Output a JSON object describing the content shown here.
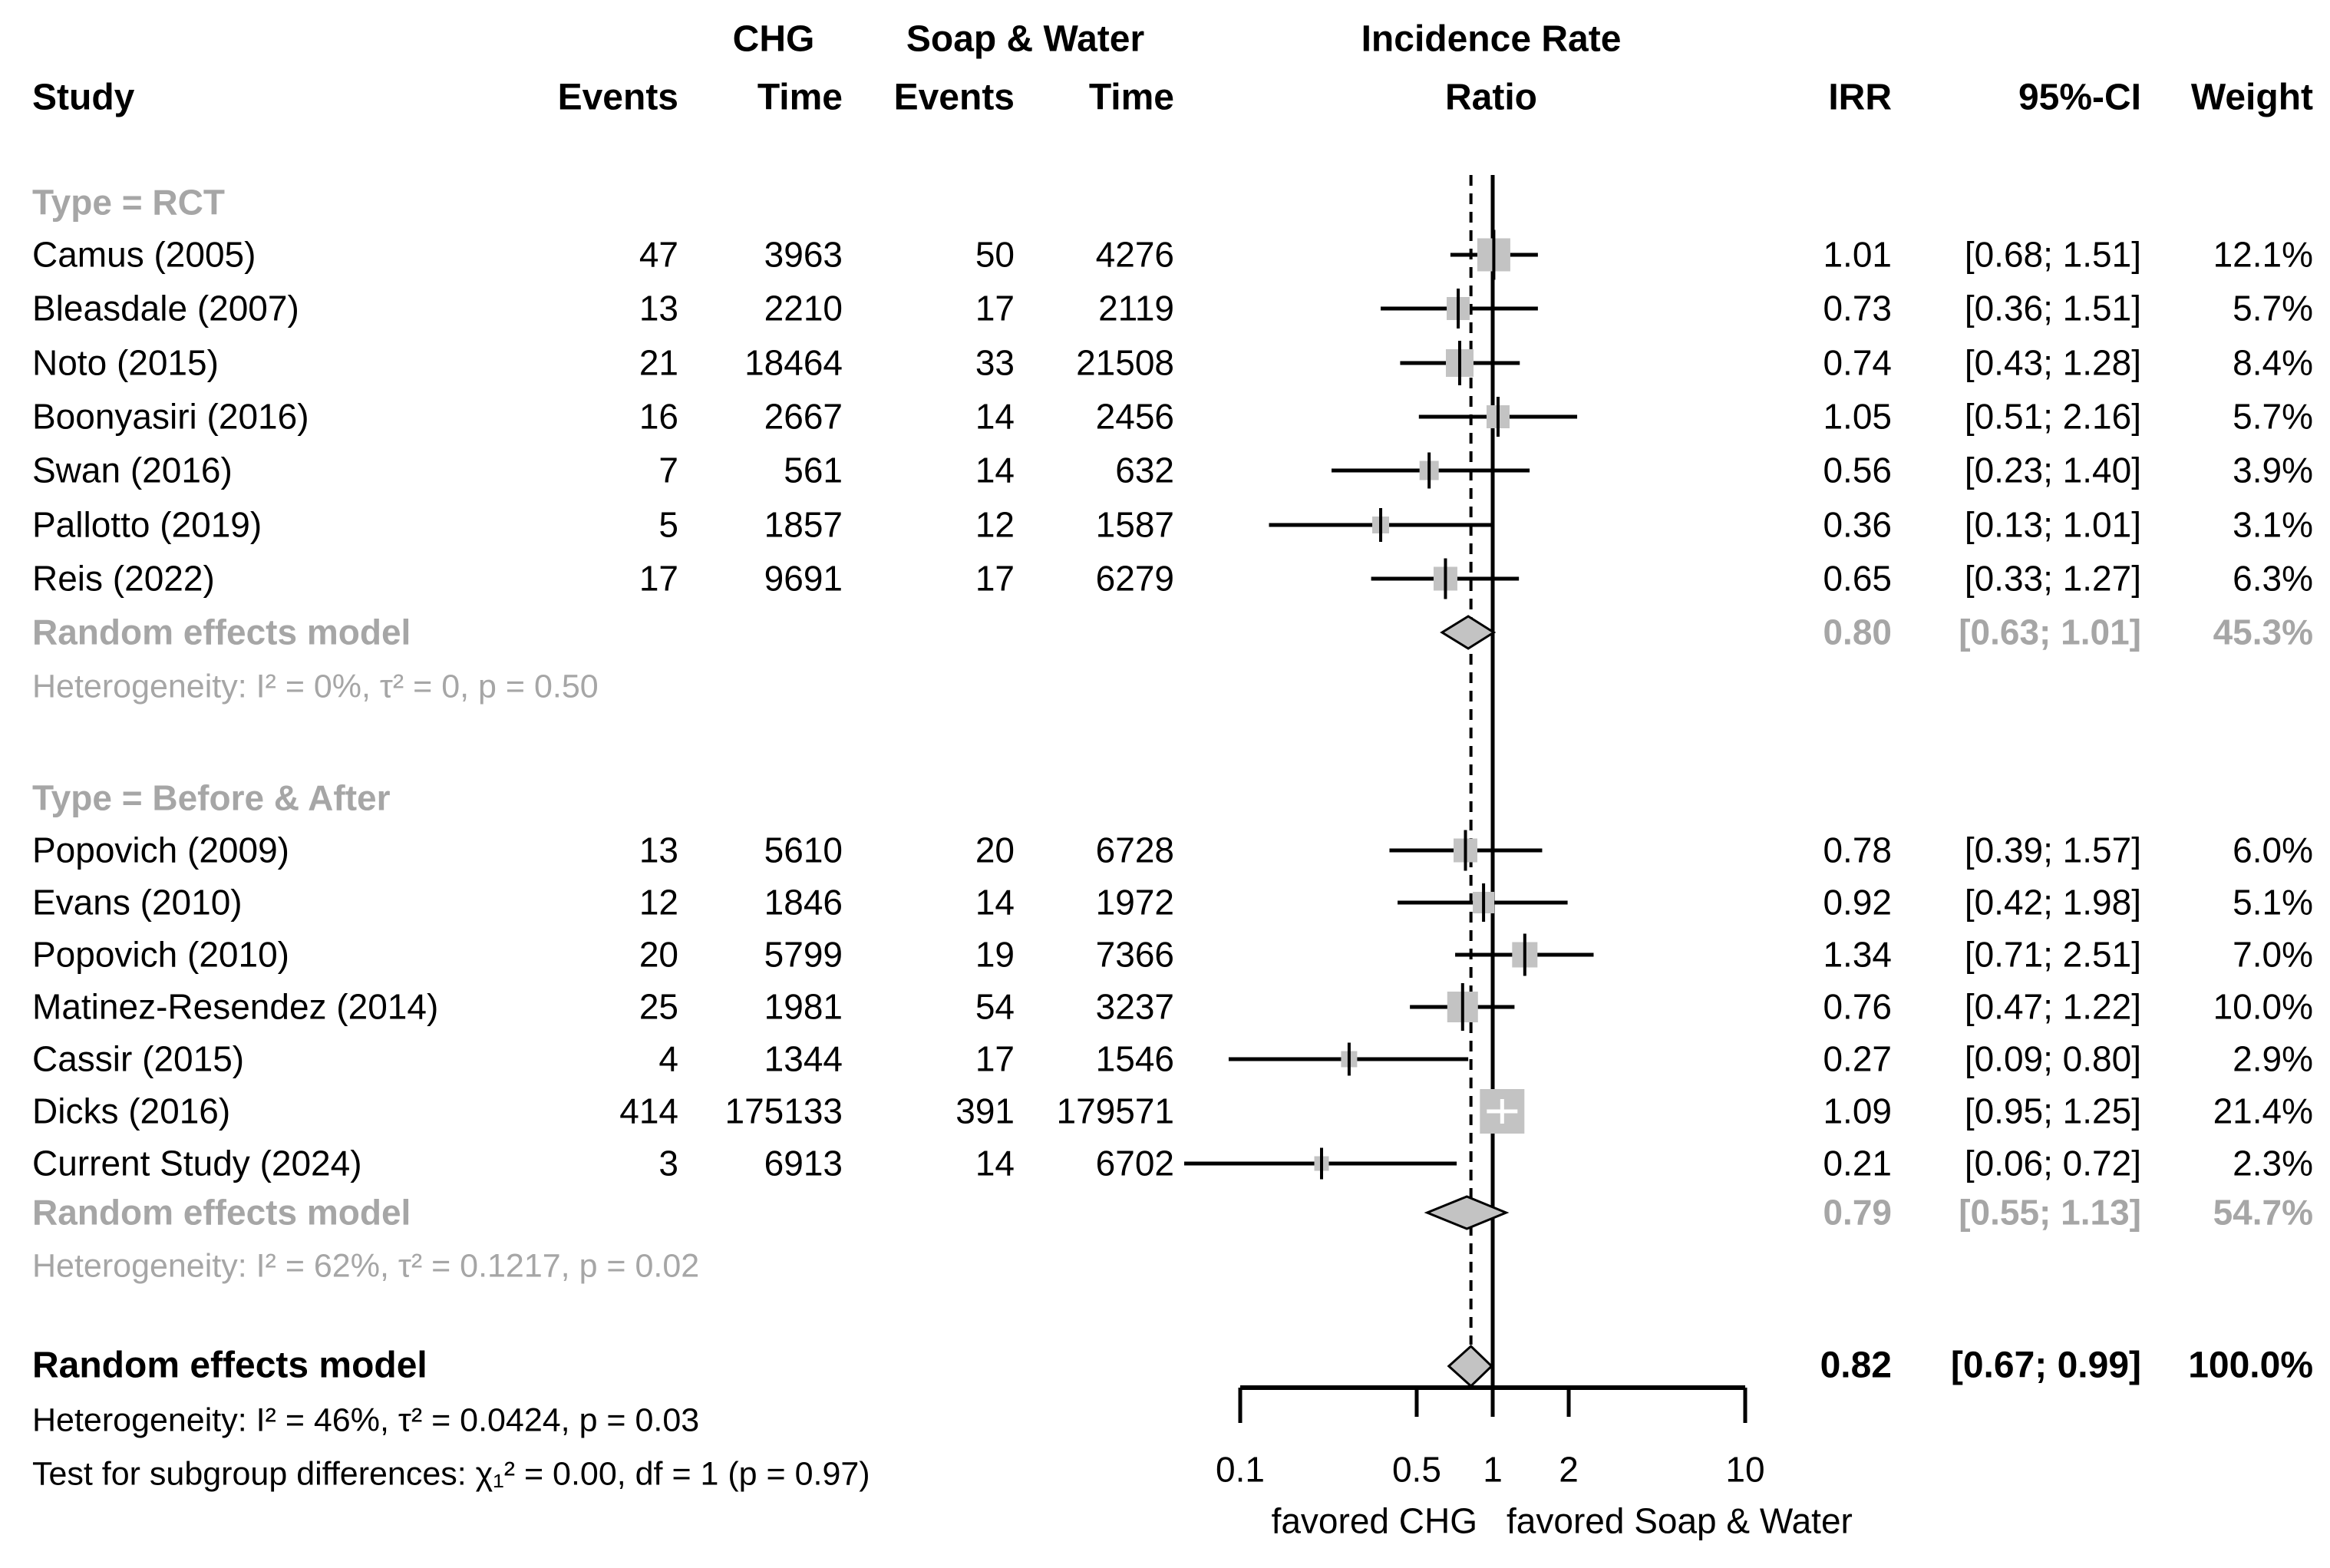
{
  "chart_data": {
    "type": "scatter",
    "subtype": "forest_plot_meta_analysis",
    "effect_measure": "IRR",
    "columns": {
      "study": "Study",
      "chg_group": "CHG",
      "soap_group": "Soap & Water",
      "events": "Events",
      "time": "Time",
      "plot_title_line1": "Incidence Rate",
      "plot_title_line2": "Ratio",
      "irr": "IRR",
      "ci": "95%-CI",
      "weight": "Weight"
    },
    "groups": [
      {
        "label": "Type = RCT",
        "studies": [
          {
            "name": "Camus (2005)",
            "events_chg": 47,
            "time_chg": 3963,
            "events_sw": 50,
            "time_sw": 4276,
            "irr": 1.01,
            "ci_lo": 0.68,
            "ci_hi": 1.51,
            "weight_pct": 12.1
          },
          {
            "name": "Bleasdale (2007)",
            "events_chg": 13,
            "time_chg": 2210,
            "events_sw": 17,
            "time_sw": 2119,
            "irr": 0.73,
            "ci_lo": 0.36,
            "ci_hi": 1.51,
            "weight_pct": 5.7
          },
          {
            "name": "Noto (2015)",
            "events_chg": 21,
            "time_chg": 18464,
            "events_sw": 33,
            "time_sw": 21508,
            "irr": 0.74,
            "ci_lo": 0.43,
            "ci_hi": 1.28,
            "weight_pct": 8.4
          },
          {
            "name": "Boonyasiri (2016)",
            "events_chg": 16,
            "time_chg": 2667,
            "events_sw": 14,
            "time_sw": 2456,
            "irr": 1.05,
            "ci_lo": 0.51,
            "ci_hi": 2.16,
            "weight_pct": 5.7
          },
          {
            "name": "Swan (2016)",
            "events_chg": 7,
            "time_chg": 561,
            "events_sw": 14,
            "time_sw": 632,
            "irr": 0.56,
            "ci_lo": 0.23,
            "ci_hi": 1.4,
            "weight_pct": 3.9
          },
          {
            "name": "Pallotto (2019)",
            "events_chg": 5,
            "time_chg": 1857,
            "events_sw": 12,
            "time_sw": 1587,
            "irr": 0.36,
            "ci_lo": 0.13,
            "ci_hi": 1.01,
            "weight_pct": 3.1
          },
          {
            "name": "Reis (2022)",
            "events_chg": 17,
            "time_chg": 9691,
            "events_sw": 17,
            "time_sw": 6279,
            "irr": 0.65,
            "ci_lo": 0.33,
            "ci_hi": 1.27,
            "weight_pct": 6.3
          }
        ],
        "summary": {
          "label": "Random effects model",
          "irr": 0.8,
          "ci_lo": 0.63,
          "ci_hi": 1.01,
          "weight_pct": 45.3
        },
        "heterogeneity": "Heterogeneity: I² = 0%, τ² = 0, p = 0.50"
      },
      {
        "label": "Type = Before & After",
        "studies": [
          {
            "name": "Popovich (2009)",
            "events_chg": 13,
            "time_chg": 5610,
            "events_sw": 20,
            "time_sw": 6728,
            "irr": 0.78,
            "ci_lo": 0.39,
            "ci_hi": 1.57,
            "weight_pct": 6.0
          },
          {
            "name": "Evans (2010)",
            "events_chg": 12,
            "time_chg": 1846,
            "events_sw": 14,
            "time_sw": 1972,
            "irr": 0.92,
            "ci_lo": 0.42,
            "ci_hi": 1.98,
            "weight_pct": 5.1
          },
          {
            "name": "Popovich (2010)",
            "events_chg": 20,
            "time_chg": 5799,
            "events_sw": 19,
            "time_sw": 7366,
            "irr": 1.34,
            "ci_lo": 0.71,
            "ci_hi": 2.51,
            "weight_pct": 7.0
          },
          {
            "name": "Matinez-Resendez (2014)",
            "events_chg": 25,
            "time_chg": 1981,
            "events_sw": 54,
            "time_sw": 3237,
            "irr": 0.76,
            "ci_lo": 0.47,
            "ci_hi": 1.22,
            "weight_pct": 10.0
          },
          {
            "name": "Cassir (2015)",
            "events_chg": 4,
            "time_chg": 1344,
            "events_sw": 17,
            "time_sw": 1546,
            "irr": 0.27,
            "ci_lo": 0.09,
            "ci_hi": 0.8,
            "weight_pct": 2.9
          },
          {
            "name": "Dicks (2016)",
            "events_chg": 414,
            "time_chg": 175133,
            "events_sw": 391,
            "time_sw": 179571,
            "irr": 1.09,
            "ci_lo": 0.95,
            "ci_hi": 1.25,
            "weight_pct": 21.4
          },
          {
            "name": "Current Study (2024)",
            "events_chg": 3,
            "time_chg": 6913,
            "events_sw": 14,
            "time_sw": 6702,
            "irr": 0.21,
            "ci_lo": 0.06,
            "ci_hi": 0.72,
            "weight_pct": 2.3
          }
        ],
        "summary": {
          "label": "Random effects model",
          "irr": 0.79,
          "ci_lo": 0.55,
          "ci_hi": 1.13,
          "weight_pct": 54.7
        },
        "heterogeneity": "Heterogeneity: I² = 62%, τ² = 0.1217, p = 0.02"
      }
    ],
    "overall": {
      "label": "Random effects model",
      "irr": 0.82,
      "ci_lo": 0.67,
      "ci_hi": 0.99,
      "weight_pct": 100.0,
      "heterogeneity": "Heterogeneity: I² = 46%, τ² = 0.0424, p = 0.03",
      "subgroup_test": "Test for subgroup differences: χ₁² = 0.00, df = 1 (p = 0.97)"
    },
    "axis": {
      "scale": "log",
      "range": [
        0.1,
        10
      ],
      "ticks": [
        0.1,
        0.5,
        1,
        2,
        10
      ],
      "tick_labels": [
        "0.1",
        "0.5",
        "1",
        "2",
        "10"
      ],
      "ref_line": 1,
      "summary_ref_line": 0.82,
      "left_label": "favored CHG",
      "right_label": "favored Soap & Water"
    },
    "colors": {
      "text": "#000000",
      "muted": "#a6a6a6",
      "marker_fill": "#c3c3c3",
      "line": "#000000",
      "background": "#ffffff"
    }
  }
}
